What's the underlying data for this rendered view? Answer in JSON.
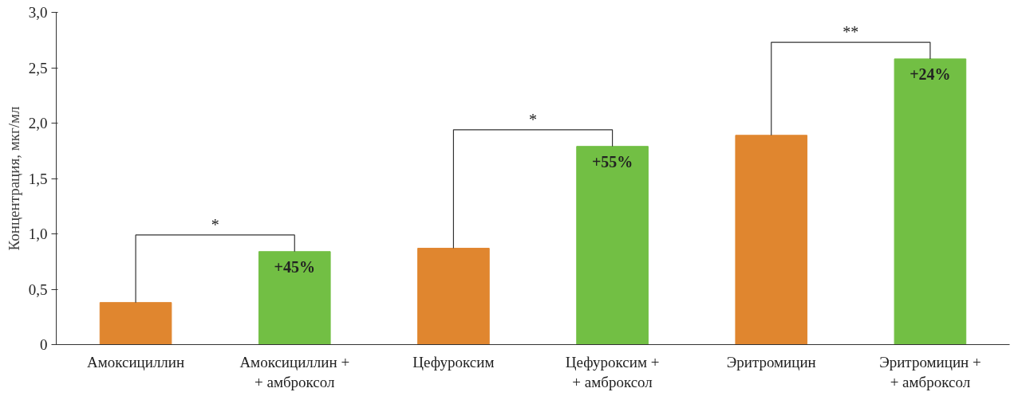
{
  "chart_data": {
    "type": "bar",
    "ylabel": "Концентрация, мкг/мл",
    "categories": [
      "Амоксициллин",
      "Амоксициллин +\n+ амброксол",
      "Цефуроксим",
      "Цефуроксим +\n+ амброксол",
      "Эритромицин",
      "Эритромицин +\n+ амброксол"
    ],
    "values": [
      0.38,
      0.84,
      0.87,
      1.79,
      1.89,
      2.58
    ],
    "colors": [
      "#e0862f",
      "#72bf44",
      "#e0862f",
      "#72bf44",
      "#e0862f",
      "#72bf44"
    ],
    "ylim": [
      0,
      3.0
    ],
    "yticks": [
      {
        "value": 0,
        "label": "0"
      },
      {
        "value": 0.5,
        "label": "0,5"
      },
      {
        "value": 1.0,
        "label": "1,0"
      },
      {
        "value": 1.5,
        "label": "1,5"
      },
      {
        "value": 2.0,
        "label": "2,0"
      },
      {
        "value": 2.5,
        "label": "2,5"
      },
      {
        "value": 3.0,
        "label": "3,0"
      }
    ],
    "grid": false,
    "annotations": [
      {
        "text": "+45%",
        "x": "Амоксициллин +\n+ амброксол",
        "y": 0.84
      },
      {
        "text": "+55%",
        "x": "Цефуроксим +\n+ амброксол",
        "y": 1.79
      },
      {
        "text": "+24%",
        "x": "Эритромицин +\n+ амброксол",
        "y": 2.58
      },
      "*",
      "*",
      "**"
    ]
  }
}
